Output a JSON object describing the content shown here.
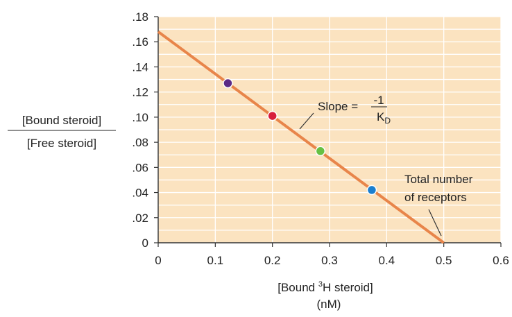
{
  "chart_data": {
    "type": "scatter",
    "x": [
      0.122,
      0.2,
      0.284,
      0.374
    ],
    "y": [
      0.127,
      0.101,
      0.073,
      0.042
    ],
    "point_colors": [
      "#5b2a86",
      "#d81e3c",
      "#66c043",
      "#1b7fcf"
    ],
    "fit_line": {
      "x": [
        0,
        0.5
      ],
      "y": [
        0.168,
        0
      ]
    },
    "xlim": [
      0,
      0.6
    ],
    "ylim": [
      0,
      0.18
    ],
    "x_ticks": [
      0,
      0.1,
      0.2,
      0.3,
      0.4,
      0.5,
      0.6
    ],
    "x_tick_labels": [
      "0",
      "0.1",
      "0.2",
      "0.3",
      "0.4",
      "0.5",
      "0.6"
    ],
    "y_ticks": [
      0,
      0.02,
      0.04,
      0.06,
      0.08,
      0.1,
      0.12,
      0.14,
      0.16,
      0.18
    ],
    "y_tick_labels": [
      "0",
      ".02",
      ".04",
      ".06",
      ".08",
      ".10",
      ".12",
      ".14",
      ".16",
      ".18"
    ],
    "xlabel": {
      "prefix": "[Bound ",
      "superscript": "3",
      "suffix": "H steroid]",
      "unit": "(nM)"
    },
    "ylabel": {
      "numerator": "[Bound steroid]",
      "denominator": "[Free steroid]"
    },
    "annotations": {
      "slope": {
        "text": "Slope =",
        "numerator": "-1",
        "denominator_main": "K",
        "denominator_sub": "D"
      },
      "intercept": {
        "line1": "Total number",
        "line2": "of receptors"
      }
    },
    "grid": true,
    "colors": {
      "background": "#fbe3c0",
      "grid": "#ffffff",
      "line": "#e8854a",
      "axis": "#333333"
    }
  }
}
